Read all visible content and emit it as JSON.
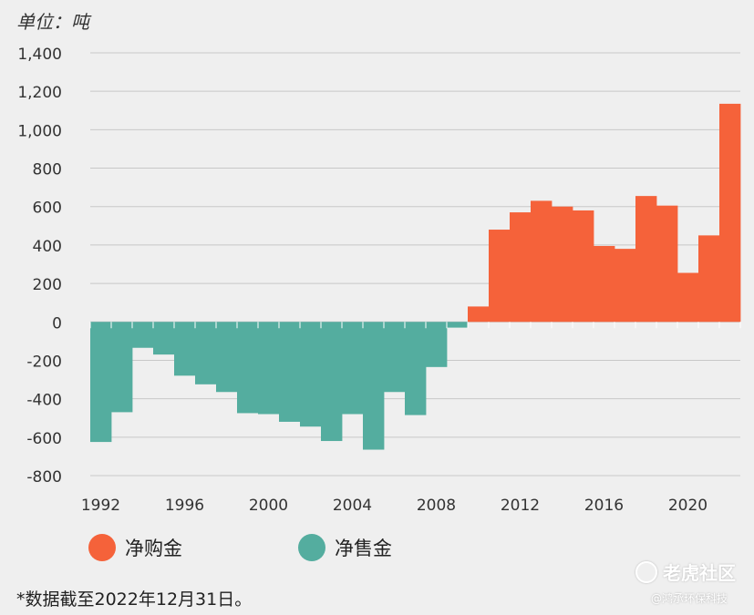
{
  "unit_label": "单位：吨",
  "legend": {
    "buy_label": "净购金",
    "sell_label": "净售金"
  },
  "footnote": "*数据截至2022年12月31日。",
  "watermark": {
    "main": "老虎社区",
    "sub": "@鸿承环保科技"
  },
  "colors": {
    "buy": "#f5623a",
    "sell": "#54ad9f",
    "grid": "#c8c8c8",
    "axis_text": "#333333",
    "background": "#efefef"
  },
  "chart_data": {
    "type": "bar",
    "title": "",
    "ylabel": "单位：吨",
    "xlabel": "",
    "ylim": [
      -800,
      1400
    ],
    "yticks": [
      -800,
      -600,
      -400,
      -200,
      0,
      200,
      400,
      600,
      800,
      1000,
      1200,
      1400
    ],
    "ytick_labels": [
      "-800",
      "-600",
      "-400",
      "-200",
      "0",
      "200",
      "400",
      "600",
      "800",
      "1,000",
      "1,200",
      "1,400"
    ],
    "xtick_labels": [
      "1992",
      "1996",
      "2000",
      "2004",
      "2008",
      "2012",
      "2016",
      "2020"
    ],
    "grid": true,
    "legend_position": "bottom-left",
    "series_names": [
      "净购金",
      "净售金"
    ],
    "categories": [
      1992,
      1993,
      1994,
      1995,
      1996,
      1997,
      1998,
      1999,
      2000,
      2001,
      2002,
      2003,
      2004,
      2005,
      2006,
      2007,
      2008,
      2009,
      2010,
      2011,
      2012,
      2013,
      2014,
      2015,
      2016,
      2017,
      2018,
      2019,
      2020,
      2021,
      2022
    ],
    "values": [
      -625,
      -470,
      -135,
      -170,
      -280,
      -325,
      -365,
      -475,
      -480,
      -520,
      -545,
      -620,
      -480,
      -665,
      -365,
      -485,
      -235,
      -30,
      80,
      480,
      570,
      630,
      600,
      580,
      395,
      380,
      655,
      605,
      255,
      450,
      1135
    ]
  }
}
